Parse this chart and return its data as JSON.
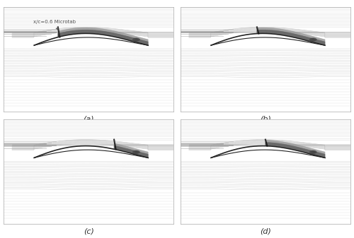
{
  "figure_width": 5.0,
  "figure_height": 3.37,
  "dpi": 100,
  "bg_color": "#ffffff",
  "panel_labels": [
    "(a)",
    "(b)",
    "(c)",
    "(d)"
  ],
  "annotation_text": "x/c=0.6 Microtab",
  "annotation_color": "#555555",
  "streamline_color": "#888888",
  "airfoil_color": "#222222",
  "shock_color": "#111111",
  "border_color": "#aaaaaa"
}
